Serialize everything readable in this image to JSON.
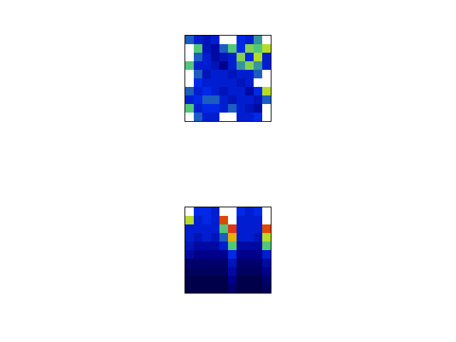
{
  "chart_data": [
    {
      "type": "heatmap",
      "tick_labels": false,
      "zlim": [
        0,
        1
      ],
      "cells": [
        [
          0.4,
          0.3,
          0.25,
          0.3,
          1.2,
          1.2,
          0.35,
          0.3,
          0.45,
          1.2
        ],
        [
          1.2,
          0.5,
          0.25,
          0.2,
          0.4,
          0.5,
          0.35,
          0.55,
          0.5,
          0.6
        ],
        [
          1.2,
          0.4,
          0.3,
          0.2,
          0.25,
          0.3,
          0.55,
          0.35,
          0.6,
          0.3
        ],
        [
          0.5,
          0.3,
          0.3,
          0.25,
          0.15,
          0.3,
          0.45,
          0.55,
          0.45,
          0.3
        ],
        [
          1.2,
          0.4,
          0.25,
          0.3,
          0.3,
          0.25,
          0.3,
          0.3,
          0.4,
          1.2
        ],
        [
          1.2,
          0.35,
          0.3,
          0.3,
          0.3,
          0.3,
          0.25,
          0.3,
          1.2,
          1.2
        ],
        [
          0.4,
          0.3,
          0.35,
          0.3,
          0.25,
          0.3,
          0.3,
          0.2,
          0.35,
          0.6
        ],
        [
          0.3,
          0.35,
          0.4,
          0.4,
          0.3,
          0.25,
          0.3,
          0.3,
          0.25,
          0.4
        ],
        [
          0.5,
          0.3,
          0.35,
          0.35,
          0.3,
          0.4,
          0.3,
          0.25,
          0.2,
          1.2
        ],
        [
          1.2,
          0.4,
          0.3,
          0.3,
          1.2,
          1.2,
          0.3,
          0.3,
          0.35,
          1.2
        ]
      ]
    },
    {
      "type": "heatmap",
      "tick_labels": false,
      "zlim": [
        0,
        1
      ],
      "cells": [
        [
          1.2,
          0.35,
          0.35,
          0.3,
          1.2,
          1.2,
          0.35,
          0.3,
          0.35,
          1.2
        ],
        [
          0.6,
          0.3,
          0.35,
          0.3,
          0.8,
          1.2,
          0.3,
          0.3,
          0.3,
          1.2
        ],
        [
          0.3,
          0.3,
          0.3,
          0.3,
          0.5,
          0.9,
          0.3,
          0.3,
          0.3,
          0.8
        ],
        [
          0.3,
          0.25,
          0.3,
          0.25,
          0.4,
          0.7,
          0.3,
          0.3,
          0.25,
          0.6
        ],
        [
          0.25,
          0.2,
          0.2,
          0.2,
          0.3,
          0.5,
          0.2,
          0.2,
          0.2,
          0.5
        ],
        [
          0.2,
          0.15,
          0.15,
          0.15,
          0.15,
          0.35,
          0.15,
          0.15,
          0.15,
          0.3
        ],
        [
          0.1,
          0.1,
          0.1,
          0.1,
          0.1,
          0.25,
          0.1,
          0.1,
          0.1,
          0.2
        ],
        [
          0.08,
          0.08,
          0.08,
          0.08,
          0.08,
          0.2,
          0.08,
          0.08,
          0.08,
          0.15
        ],
        [
          0.05,
          0.05,
          0.05,
          0.05,
          0.05,
          0.15,
          0.05,
          0.05,
          0.05,
          0.1
        ],
        [
          0.05,
          0.05,
          0.05,
          0.05,
          0.05,
          0.1,
          0.05,
          0.05,
          0.05,
          0.08
        ]
      ]
    }
  ]
}
